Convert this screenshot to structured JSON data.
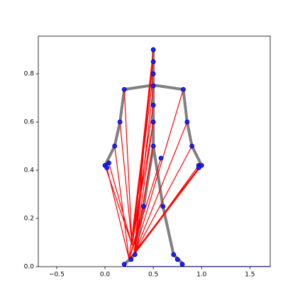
{
  "chart_data": {
    "type": "line",
    "xlim": [
      -0.69,
      1.71
    ],
    "ylim": [
      0,
      0.956
    ],
    "xticks": [
      {
        "value": -0.5,
        "label": "−0.5"
      },
      {
        "value": 0,
        "label": "0.0"
      },
      {
        "value": 0.5,
        "label": "0.5"
      },
      {
        "value": 1,
        "label": "1.0"
      },
      {
        "value": 1.5,
        "label": "1.5"
      }
    ],
    "yticks": [
      {
        "value": 0,
        "label": "0.0"
      },
      {
        "value": 0.2,
        "label": "0.2"
      },
      {
        "value": 0.4,
        "label": "0.4"
      },
      {
        "value": 0.6,
        "label": "0.6"
      },
      {
        "value": 0.8,
        "label": "0.8"
      }
    ],
    "series": [
      {
        "color": "#808080",
        "linewidth": 4,
        "x": [
          0.5,
          0.5,
          null,
          0.2,
          0.5,
          0.81,
          null,
          0.2,
          0.155,
          0.1,
          0.0,
          null,
          0.81,
          0.85,
          0.9,
          1.0,
          null,
          0.5,
          0.5,
          null,
          0.5,
          0.4,
          0.31,
          0.2,
          null,
          0.5,
          0.6,
          0.71,
          0.81
        ],
        "values": [
          0.9,
          0.753,
          null,
          0.735,
          0.753,
          0.735,
          null,
          0.735,
          0.6,
          0.5,
          0.42,
          null,
          0.735,
          0.6,
          0.5,
          0.42,
          null,
          0.753,
          0.5,
          null,
          0.5,
          0.25,
          0.05,
          0.01,
          null,
          0.5,
          0.25,
          0.05,
          0.01
        ]
      },
      {
        "color": "#1f1fff",
        "linewidth": 1.5,
        "x": [
          0.2,
          1.71
        ],
        "values": [
          0.0,
          0.0
        ]
      },
      {
        "color": "#ff0000",
        "linewidth": 1.2,
        "x": [
          0.28,
          0.5,
          null,
          0.28,
          0.5,
          null,
          0.28,
          0.5,
          null,
          0.28,
          0.5,
          null,
          0.28,
          0.5,
          null,
          0.28,
          0.0,
          null,
          0.28,
          0.04,
          null,
          0.28,
          0.2,
          null,
          0.28,
          0.155,
          null,
          0.3,
          0.5,
          null,
          0.3,
          0.5,
          null,
          0.3,
          0.5,
          null,
          0.3,
          0.5,
          null,
          0.3,
          0.97,
          null,
          0.3,
          1.0,
          null,
          0.3,
          0.9,
          null,
          0.3,
          0.85,
          null,
          0.3,
          0.81,
          null,
          0.25,
          0.5,
          null,
          0.25,
          0.1,
          null,
          0.25,
          0.02,
          null,
          0.25,
          0.4,
          null,
          0.25,
          0.58,
          null,
          0.25,
          0.97
        ],
        "values": [
          0.09,
          0.9,
          null,
          0.09,
          0.85,
          null,
          0.09,
          0.8,
          null,
          0.09,
          0.67,
          null,
          0.09,
          0.6,
          null,
          0.09,
          0.42,
          null,
          0.09,
          0.43,
          null,
          0.09,
          0.735,
          null,
          0.09,
          0.6,
          null,
          0.05,
          0.9,
          null,
          0.05,
          0.75,
          null,
          0.05,
          0.6,
          null,
          0.05,
          0.5,
          null,
          0.05,
          0.42,
          null,
          0.05,
          0.42,
          null,
          0.05,
          0.5,
          null,
          0.05,
          0.6,
          null,
          0.05,
          0.735,
          null,
          0.03,
          0.85,
          null,
          0.03,
          0.5,
          null,
          0.03,
          0.41,
          null,
          0.03,
          0.25,
          null,
          0.03,
          0.45,
          null,
          0.03,
          0.41
        ]
      },
      {
        "color": "#1f1fff",
        "marker": true,
        "x": [
          0.5,
          0.5,
          0.5,
          0.5,
          0.5,
          0.5,
          0.5,
          0.2,
          0.81,
          0.155,
          0.85,
          0.1,
          0.9,
          0.0,
          0.02,
          0.04,
          0.97,
          1.0,
          0.97,
          0.58,
          0.4,
          0.6,
          0.31,
          0.27,
          0.2,
          0.71,
          0.75,
          0.8
        ],
        "values": [
          0.9,
          0.85,
          0.8,
          0.75,
          0.67,
          0.6,
          0.5,
          0.735,
          0.735,
          0.6,
          0.6,
          0.5,
          0.5,
          0.42,
          0.41,
          0.43,
          0.42,
          0.42,
          0.41,
          0.45,
          0.25,
          0.25,
          0.05,
          0.03,
          0.01,
          0.05,
          0.03,
          0.01
        ]
      }
    ]
  }
}
